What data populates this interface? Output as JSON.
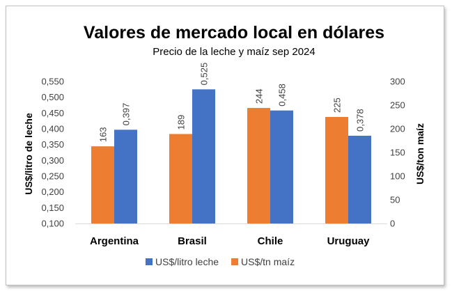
{
  "chart_data": {
    "type": "bar",
    "title": "Valores de mercado local en dólares",
    "subtitle": "Precio de la leche y maíz sep 2024",
    "categories": [
      "Argentina",
      "Brasil",
      "Chile",
      "Uruguay"
    ],
    "series": [
      {
        "name": "US$/litro leche",
        "axis": "left",
        "color": "#4472C4",
        "values": [
          0.397,
          0.525,
          0.458,
          0.378
        ],
        "labels": [
          "0,397",
          "0,525",
          "0,458",
          "0,378"
        ]
      },
      {
        "name": "US$/tn maíz",
        "axis": "right",
        "color": "#ED7D31",
        "values": [
          163,
          189,
          244,
          225
        ],
        "labels": [
          "163",
          "189",
          "244",
          "225"
        ]
      }
    ],
    "y_left": {
      "label": "US$/litro de leche",
      "ylim": [
        0.1,
        0.55
      ],
      "ticks": [
        "0,100",
        "0,150",
        "0,200",
        "0,250",
        "0,300",
        "0,350",
        "0,400",
        "0,450",
        "0,500",
        "0,550"
      ]
    },
    "y_right": {
      "label": "US$/ton maíz",
      "ylim": [
        0,
        300
      ],
      "ticks": [
        "0",
        "50",
        "100",
        "150",
        "200",
        "250",
        "300"
      ]
    },
    "bar_order": [
      "US$/tn maíz",
      "US$/litro leche"
    ],
    "grid": false,
    "legend_position": "bottom",
    "legend_order": [
      "US$/litro leche",
      "US$/tn maíz"
    ]
  }
}
